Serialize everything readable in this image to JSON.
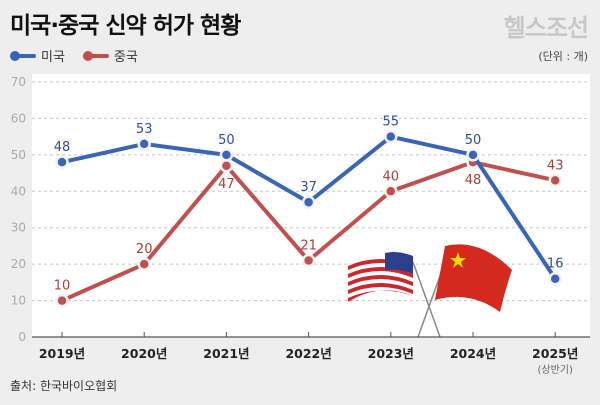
{
  "title": "미국·중국 신약 허가 현황",
  "logo": "헬스조선",
  "unit": "(단위 : 개)",
  "source": "출처: 한국바이오협회",
  "chart_data": {
    "type": "line",
    "title": "미국·중국 신약 허가 현황",
    "categories": [
      "2019년",
      "2020년",
      "2021년",
      "2022년",
      "2023년",
      "2024년",
      "2025년"
    ],
    "category_notes": [
      "",
      "",
      "",
      "",
      "",
      "",
      "(상반기)"
    ],
    "ylim": [
      0,
      70
    ],
    "yticks": [
      0,
      10,
      20,
      30,
      40,
      50,
      60,
      70
    ],
    "grid": true,
    "legend": "top-left",
    "series": [
      {
        "name": "미국",
        "color": "#3a64b8",
        "values": [
          48,
          53,
          50,
          37,
          55,
          50,
          16
        ]
      },
      {
        "name": "중국",
        "color": "#c0504d",
        "values": [
          10,
          20,
          47,
          21,
          40,
          48,
          43
        ]
      }
    ]
  }
}
